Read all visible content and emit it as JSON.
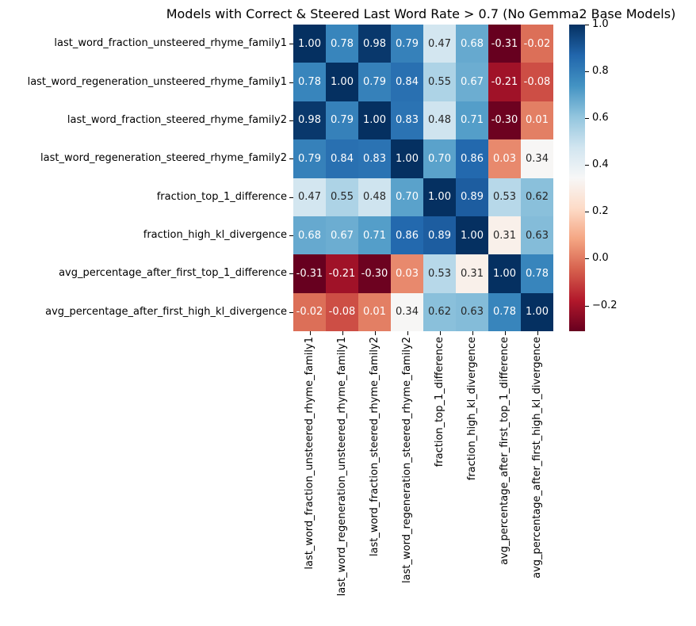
{
  "title": "Models with Correct & Steered Last Word Rate > 0.7 (No Gemma2 Base Models)",
  "chart_data": {
    "type": "heatmap",
    "title": "Models with Correct & Steered Last Word Rate > 0.7 (No Gemma2 Base Models)",
    "categories": [
      "last_word_fraction_unsteered_rhyme_family1",
      "last_word_regeneration_unsteered_rhyme_family1",
      "last_word_fraction_steered_rhyme_family2",
      "last_word_regeneration_steered_rhyme_family2",
      "fraction_top_1_difference",
      "fraction_high_kl_divergence",
      "avg_percentage_after_first_top_1_difference",
      "avg_percentage_after_first_high_kl_divergence"
    ],
    "matrix": [
      [
        1.0,
        0.78,
        0.98,
        0.79,
        0.47,
        0.68,
        -0.31,
        -0.02
      ],
      [
        0.78,
        1.0,
        0.79,
        0.84,
        0.55,
        0.67,
        -0.21,
        -0.08
      ],
      [
        0.98,
        0.79,
        1.0,
        0.83,
        0.48,
        0.71,
        -0.3,
        0.01
      ],
      [
        0.79,
        0.84,
        0.83,
        1.0,
        0.7,
        0.86,
        0.03,
        0.34
      ],
      [
        0.47,
        0.55,
        0.48,
        0.7,
        1.0,
        0.89,
        0.53,
        0.62
      ],
      [
        0.68,
        0.67,
        0.71,
        0.86,
        0.89,
        1.0,
        0.31,
        0.63
      ],
      [
        -0.31,
        -0.21,
        -0.3,
        0.03,
        0.53,
        0.31,
        1.0,
        0.78
      ],
      [
        -0.02,
        -0.08,
        0.01,
        0.34,
        0.62,
        0.63,
        0.78,
        1.0
      ]
    ],
    "annotation_decimals": 2,
    "vmin": -0.31,
    "vmax": 1.0,
    "colormap_name": "RdBu",
    "colormap_colors": [
      "#67001f",
      "#b2182b",
      "#d6604d",
      "#f4a582",
      "#fddbc7",
      "#f7f7f7",
      "#d1e5f0",
      "#92c5de",
      "#4393c3",
      "#2166ac",
      "#053061"
    ],
    "annotation_text_dark": "#262626",
    "annotation_text_light": "#ffffff",
    "colorbar": {
      "position": "right",
      "ticks": [
        {
          "label": "1.0",
          "value": 1.0
        },
        {
          "label": "0.8",
          "value": 0.8
        },
        {
          "label": "0.6",
          "value": 0.6
        },
        {
          "label": "0.4",
          "value": 0.4
        },
        {
          "label": "0.2",
          "value": 0.2
        },
        {
          "label": "0.0",
          "value": 0.0
        },
        {
          "label": "−0.2",
          "value": -0.2
        }
      ]
    },
    "grid": false,
    "legend_position": "right"
  }
}
